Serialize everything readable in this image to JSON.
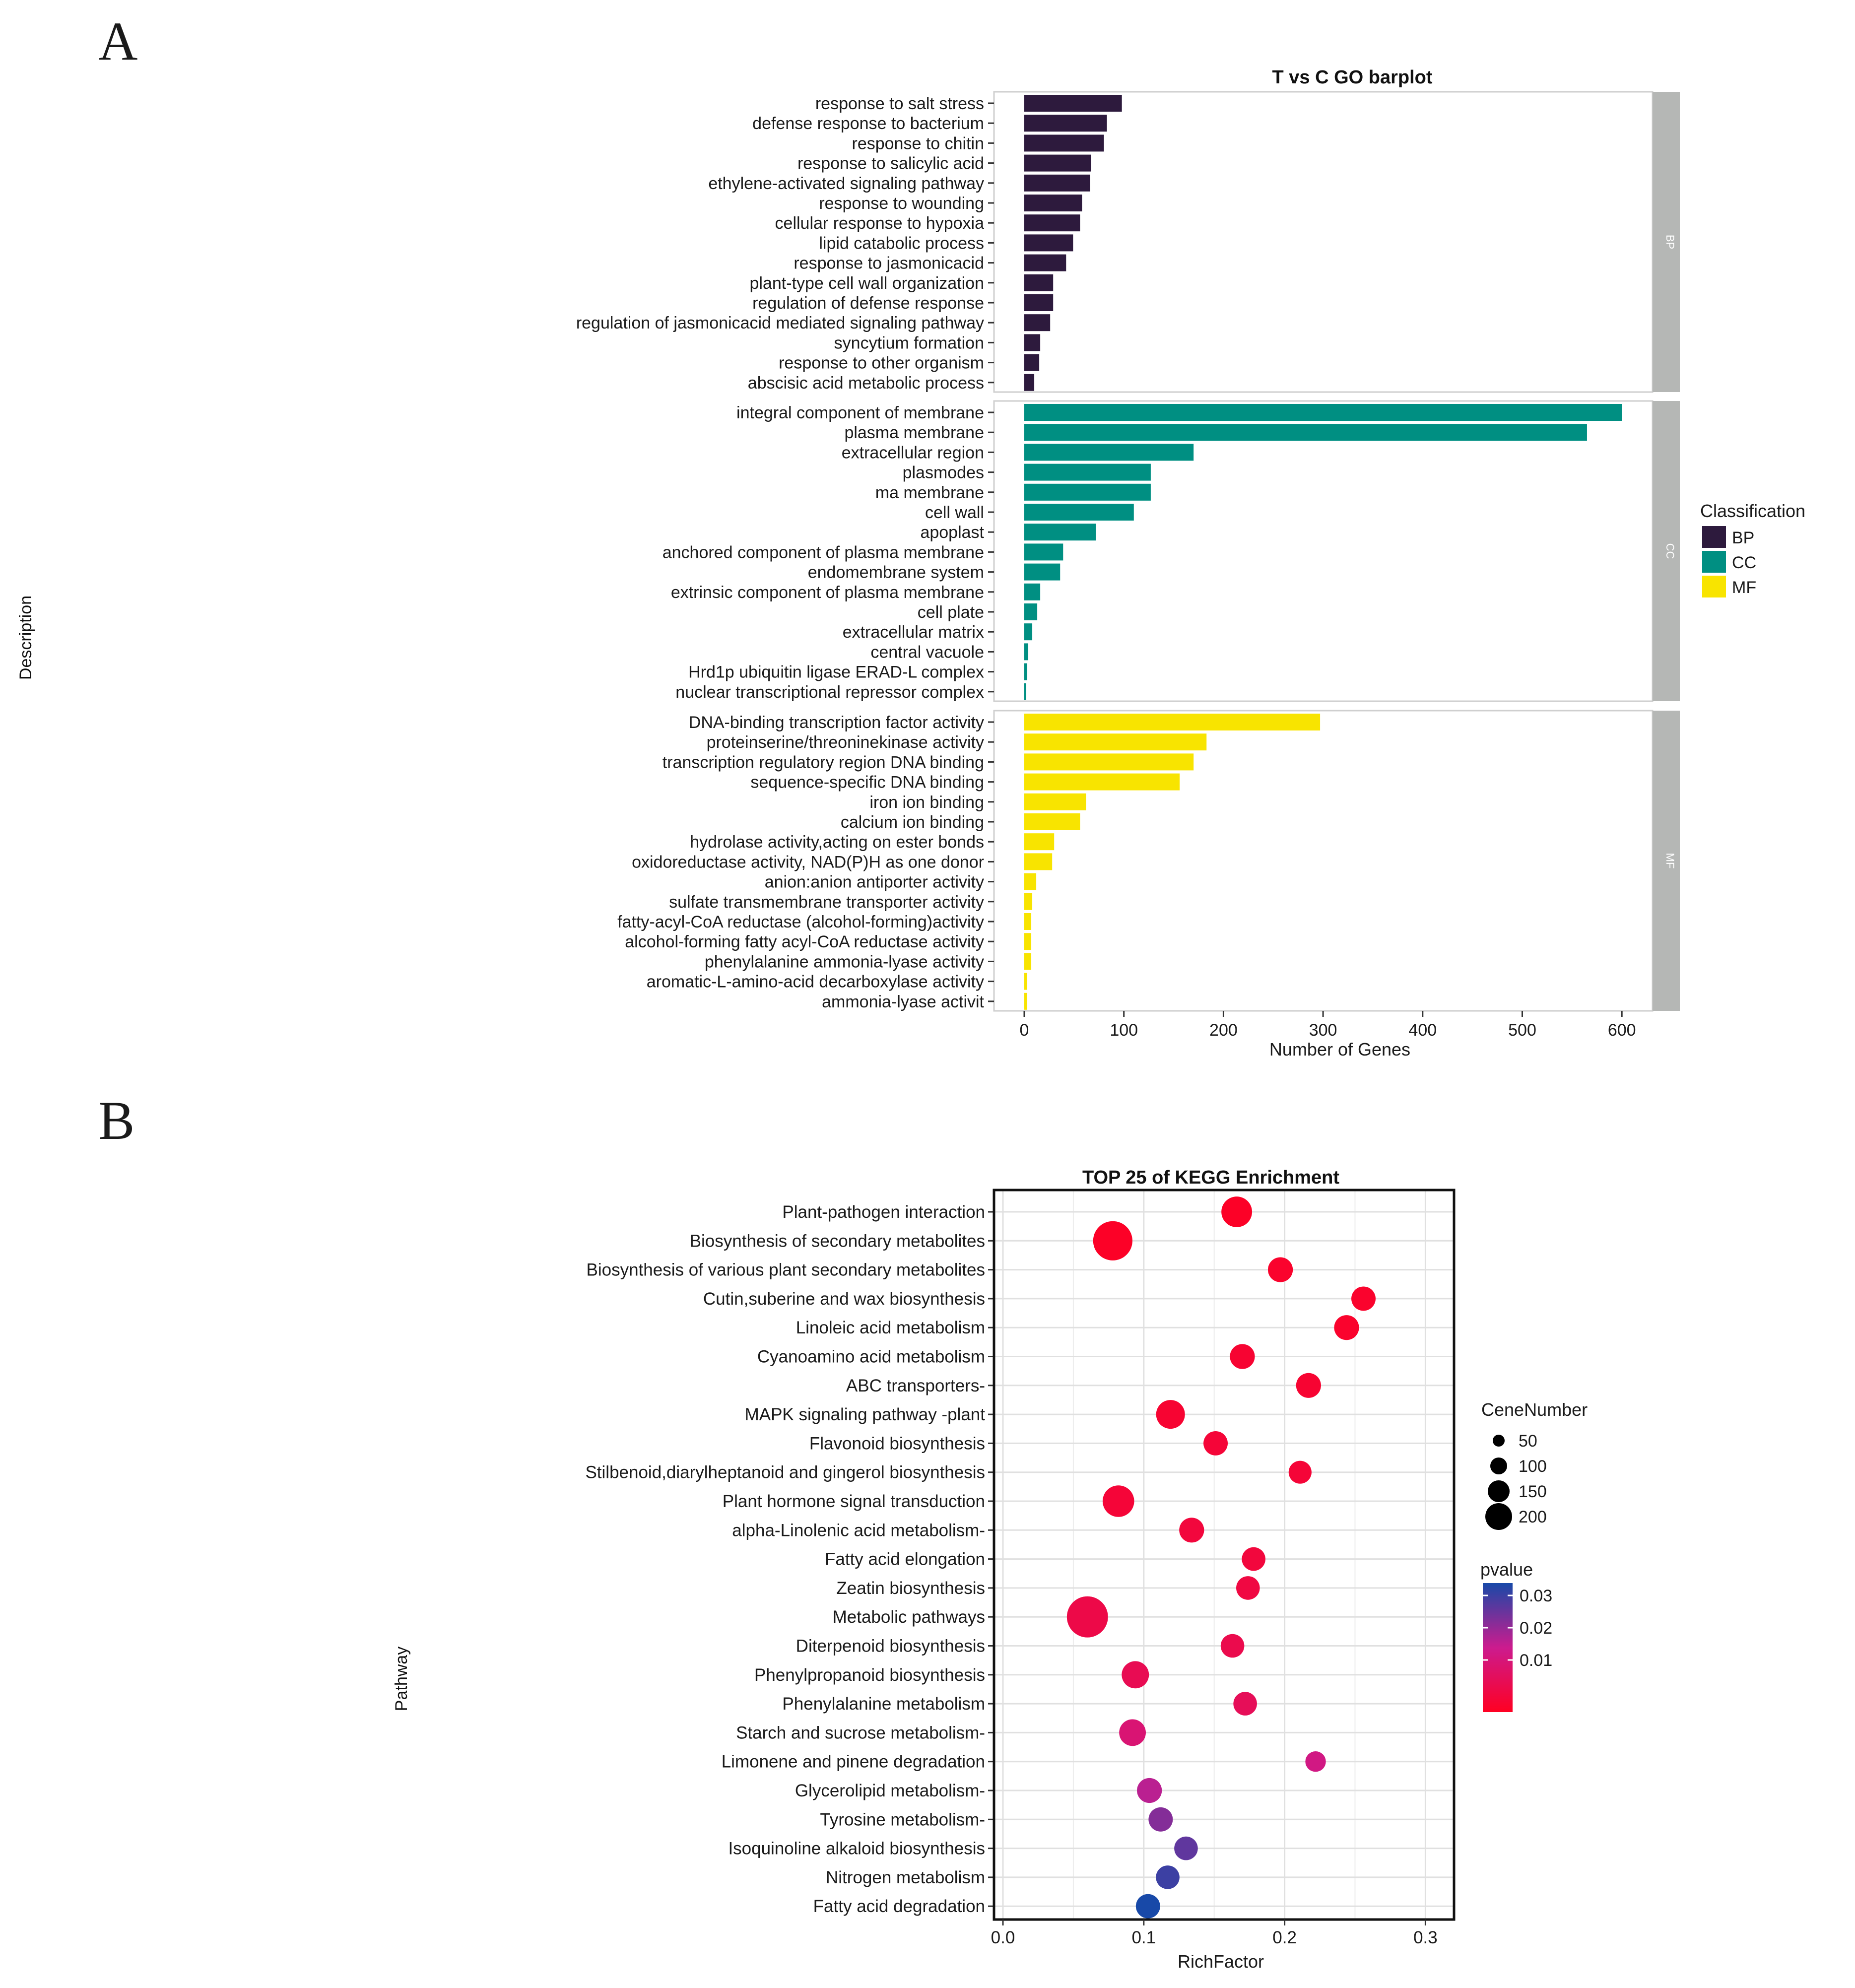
{
  "panel_labels": {
    "a": "A",
    "b": "B"
  },
  "chart_data": [
    {
      "type": "bar",
      "orientation": "horizontal",
      "title": "T vs C GO barplot",
      "xlabel": "Number of Genes",
      "ylabel": "Description",
      "xlim": [
        0,
        620
      ],
      "xticks": [
        0,
        100,
        200,
        300,
        400,
        500,
        600
      ],
      "legend": {
        "title": "Classification",
        "position": "right",
        "entries": [
          "BP",
          "CC",
          "MF"
        ]
      },
      "colors": {
        "BP": "#2d1a3d",
        "CC": "#008f82",
        "MF": "#f8e400"
      },
      "facets": [
        {
          "name": "BP",
          "categories": [
            "response to salt stress",
            "defense response to bacterium",
            "response to chitin",
            "response to salicylic acid",
            "ethylene-activated signaling pathway",
            "response to wounding",
            "cellular response to hypoxia",
            "lipid catabolic process",
            "response to jasmonicacid",
            "plant-type cell wall organization",
            "regulation of defense response",
            "regulation of jasmonicacid mediated signaling pathway",
            "syncytium formation",
            "response to other organism",
            "abscisic acid metabolic process"
          ],
          "values": [
            98,
            83,
            80,
            67,
            66,
            58,
            56,
            49,
            42,
            29,
            29,
            26,
            16,
            15,
            10
          ]
        },
        {
          "name": "CC",
          "categories": [
            "integral component of membrane",
            "plasma membrane",
            "extracellular region",
            "plasmodes",
            "ma membrane",
            "cell wall",
            "apoplast",
            "anchored component of plasma membrane",
            "endomembrane system",
            "extrinsic component of plasma membrane",
            "cell plate",
            "extracellular matrix",
            "central vacuole",
            "Hrd1p ubiquitin ligase ERAD-L complex",
            "nuclear transcriptional repressor complex"
          ],
          "values": [
            600,
            565,
            170,
            127,
            127,
            110,
            72,
            39,
            36,
            16,
            13,
            8,
            4,
            3,
            2
          ]
        },
        {
          "name": "MF",
          "categories": [
            "DNA-binding transcription factor activity",
            "proteinserine/threoninekinase activity",
            "transcription regulatory region DNA binding",
            "sequence-specific DNA binding",
            "iron ion binding",
            "calcium ion binding",
            "hydrolase activity,acting on ester bonds",
            "oxidoreductase activity, NAD(P)H as one donor",
            "anion:anion antiporter activity",
            "sulfate transmembrane transporter activity",
            "fatty-acyl-CoA reductase (alcohol-forming)activity",
            "alcohol-forming fatty acyl-CoA reductase activity",
            "phenylalanine ammonia-lyase activity",
            "aromatic-L-amino-acid decarboxylase activity",
            "ammonia-lyase activit"
          ],
          "values": [
            297,
            183,
            170,
            156,
            62,
            56,
            30,
            28,
            12,
            8,
            7,
            7,
            7,
            3,
            3
          ]
        }
      ]
    },
    {
      "type": "scatter",
      "title": "TOP 25 of KEGG Enrichment",
      "xlabel": "RichFactor",
      "ylabel": "Pathway",
      "xlim": [
        0,
        0.32
      ],
      "xticks": [
        0.0,
        0.1,
        0.2,
        0.3
      ],
      "xtick_labels": [
        "0.0",
        "0.1",
        "0.2",
        "0.3"
      ],
      "size_legend": {
        "title": "CeneNumber",
        "values": [
          50,
          100,
          150,
          200
        ],
        "labels": [
          "50",
          "100",
          "150",
          "200"
        ]
      },
      "color_legend": {
        "title": "pvalue",
        "ticks": [
          0.01,
          0.02,
          0.03
        ],
        "labels": [
          "0.01",
          "0.02",
          "0.03"
        ],
        "range": [
          0,
          0.04
        ],
        "low_color": "#ff0022",
        "mid_color": "#cc1b8e",
        "high_color": "#1849a8"
      },
      "pathways": [
        "Plant-pathogen interaction",
        "Biosynthesis of secondary metabolites",
        "Biosynthesis of various plant secondary metabolites",
        "Cutin,suberine and wax biosynthesis",
        "Linoleic acid metabolism",
        "Cyanoamino acid metabolism",
        "ABC transporters-",
        "MAPK signaling pathway -plant",
        "Flavonoid biosynthesis",
        "Stilbenoid,diarylheptanoid and gingerol biosynthesis",
        "Plant hormone signal transduction",
        "alpha-Linolenic acid metabolism-",
        "Fatty acid elongation",
        "Zeatin biosynthesis",
        "Metabolic pathways",
        "Diterpenoid biosynthesis",
        "Phenylpropanoid biosynthesis",
        "Phenylalanine metabolism",
        "Starch and sucrose metabolism-",
        "Limonene and pinene degradation",
        "Glycerolipid metabolism-",
        "Tyrosine metabolism-",
        "Isoquinoline alkaloid biosynthesis",
        "Nitrogen metabolism",
        "Fatty acid degradation"
      ],
      "rich_factor": [
        0.166,
        0.078,
        0.197,
        0.256,
        0.244,
        0.17,
        0.217,
        0.119,
        0.151,
        0.211,
        0.082,
        0.134,
        0.178,
        0.174,
        0.06,
        0.163,
        0.094,
        0.172,
        0.092,
        0.222,
        0.104,
        0.112,
        0.13,
        0.117,
        0.103
      ],
      "gene_number": [
        115,
        230,
        60,
        55,
        60,
        60,
        60,
        95,
        55,
        45,
        125,
        60,
        50,
        50,
        260,
        50,
        80,
        50,
        75,
        30,
        60,
        55,
        50,
        50,
        55
      ],
      "pvalue": [
        0.001,
        0.001,
        0.002,
        0.002,
        0.002,
        0.003,
        0.003,
        0.003,
        0.004,
        0.004,
        0.004,
        0.005,
        0.005,
        0.006,
        0.007,
        0.008,
        0.009,
        0.01,
        0.015,
        0.018,
        0.022,
        0.028,
        0.032,
        0.036,
        0.042
      ]
    }
  ]
}
